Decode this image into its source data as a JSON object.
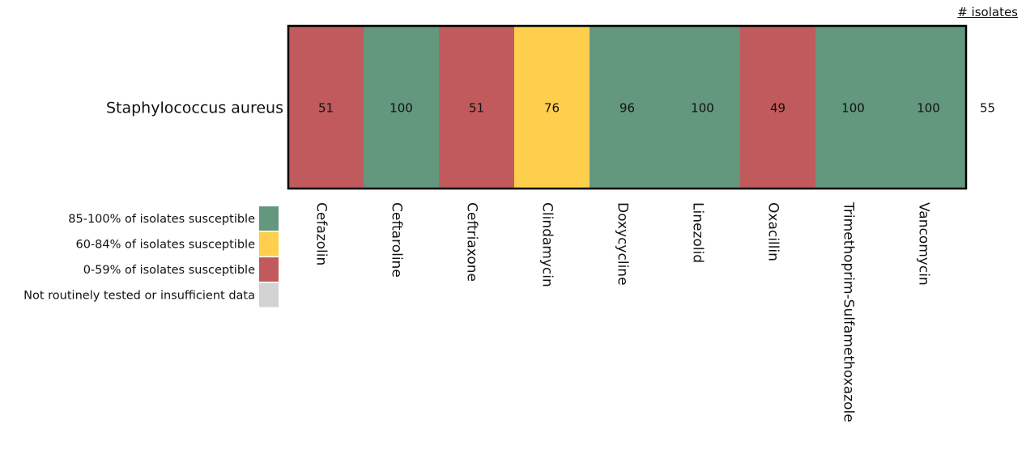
{
  "chart_data": {
    "type": "heatmap",
    "rows": [
      "Staphylococcus aureus"
    ],
    "columns": [
      "Cefazolin",
      "Ceftaroline",
      "Ceftriaxone",
      "Clindamycin",
      "Doxycycline",
      "Linezolid",
      "Oxacillin",
      "Trimethoprim-Sulfamethoxazole",
      "Vancomycin"
    ],
    "values": [
      [
        51,
        100,
        51,
        76,
        96,
        100,
        49,
        100,
        100
      ]
    ],
    "isolates_header": "# isolates",
    "isolates": [
      55
    ],
    "legend": [
      {
        "label": "85-100% of isolates susceptible",
        "color": "#63977e",
        "min": 85,
        "max": 100
      },
      {
        "label": "60-84% of isolates susceptible",
        "color": "#fecf4c",
        "min": 60,
        "max": 84
      },
      {
        "label": "0-59% of isolates susceptible",
        "color": "#c15a5c",
        "min": 0,
        "max": 59
      },
      {
        "label": "Not routinely tested or insufficient data",
        "color": "#d3d3d3"
      }
    ]
  }
}
